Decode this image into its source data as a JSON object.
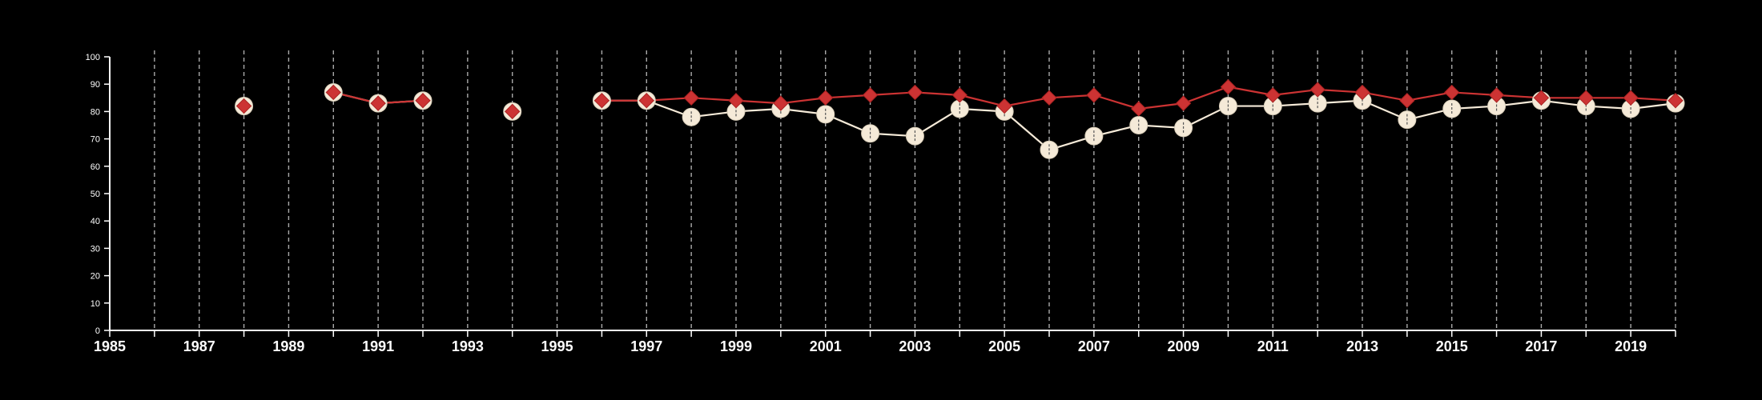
{
  "colors": {
    "background": "#000000",
    "axis": "#ffffff",
    "grid": "#aaaaaa",
    "series_red": "#cc3333",
    "series_cream": "#f5ead8"
  },
  "chart_data": {
    "type": "line",
    "title": "",
    "xlabel": "",
    "ylabel": "",
    "xlim": [
      1985,
      2020
    ],
    "ylim": [
      0,
      100
    ],
    "x_ticks": [
      1985,
      1987,
      1989,
      1991,
      1993,
      1995,
      1997,
      1999,
      2001,
      2003,
      2005,
      2007,
      2009,
      2011,
      2013,
      2015,
      2017,
      2019
    ],
    "y_ticks": [
      0,
      10,
      20,
      30,
      40,
      50,
      60,
      70,
      80,
      90,
      100
    ],
    "grid": "vertical dashed lines at each year",
    "legend": "none",
    "series": [
      {
        "marker": "diamond",
        "color": "#cc3333",
        "x": [
          1988,
          1990,
          1991,
          1992,
          1994,
          1996,
          1997,
          1998,
          1999,
          2000,
          2001,
          2002,
          2003,
          2004,
          2005,
          2006,
          2007,
          2008,
          2009,
          2010,
          2011,
          2012,
          2013,
          2014,
          2015,
          2016,
          2017,
          2018,
          2019,
          2020
        ],
        "values": [
          82,
          87,
          83,
          84,
          80,
          84,
          84,
          85,
          84,
          83,
          85,
          86,
          87,
          86,
          82,
          85,
          86,
          81,
          83,
          89,
          86,
          88,
          87,
          84,
          87,
          86,
          85,
          85,
          85,
          84
        ]
      },
      {
        "marker": "circle",
        "color": "#f5ead8",
        "x": [
          1988,
          1990,
          1991,
          1992,
          1994,
          1996,
          1997,
          1998,
          1999,
          2000,
          2001,
          2002,
          2003,
          2004,
          2005,
          2006,
          2007,
          2008,
          2009,
          2010,
          2011,
          2012,
          2013,
          2014,
          2015,
          2016,
          2017,
          2018,
          2019,
          2020
        ],
        "values": [
          82,
          87,
          83,
          84,
          80,
          84,
          84,
          78,
          80,
          81,
          79,
          72,
          71,
          81,
          80,
          66,
          71,
          75,
          74,
          82,
          82,
          83,
          84,
          77,
          81,
          82,
          84,
          82,
          81,
          83
        ]
      }
    ]
  }
}
